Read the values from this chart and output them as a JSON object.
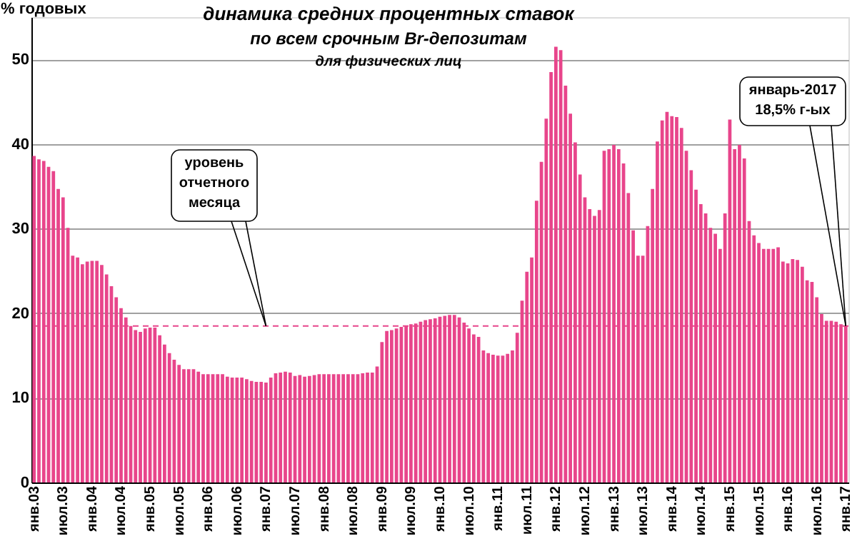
{
  "chart_data": {
    "type": "bar",
    "title": "динамика средних процентных ставок",
    "subtitle": [
      "по всем срочным Br-депозитам",
      "для физических лиц"
    ],
    "ylabel": "% годовых",
    "categories": [
      "янв.03",
      null,
      null,
      null,
      null,
      null,
      "июл.03",
      null,
      null,
      null,
      null,
      null,
      "янв.04",
      null,
      null,
      null,
      null,
      null,
      "июл.04",
      null,
      null,
      null,
      null,
      null,
      "янв.05",
      null,
      null,
      null,
      null,
      null,
      "июл.05",
      null,
      null,
      null,
      null,
      null,
      "янв.06",
      null,
      null,
      null,
      null,
      null,
      "июл.06",
      null,
      null,
      null,
      null,
      null,
      "янв.07",
      null,
      null,
      null,
      null,
      null,
      "июл.07",
      null,
      null,
      null,
      null,
      null,
      "янв.08",
      null,
      null,
      null,
      null,
      null,
      "июл.08",
      null,
      null,
      null,
      null,
      null,
      "янв.09",
      null,
      null,
      null,
      null,
      null,
      "июл.09",
      null,
      null,
      null,
      null,
      null,
      "янв.10",
      null,
      null,
      null,
      null,
      null,
      "июл.10",
      null,
      null,
      null,
      null,
      null,
      "янв.11",
      null,
      null,
      null,
      null,
      null,
      "июл.11",
      null,
      null,
      null,
      null,
      null,
      "янв.12",
      null,
      null,
      null,
      null,
      null,
      "июл.12",
      null,
      null,
      null,
      null,
      null,
      "янв.13",
      null,
      null,
      null,
      null,
      null,
      "июл.13",
      null,
      null,
      null,
      null,
      null,
      "янв.14",
      null,
      null,
      null,
      null,
      null,
      "июл.14",
      null,
      null,
      null,
      null,
      null,
      "янв.15",
      null,
      null,
      null,
      null,
      null,
      "июл.15",
      null,
      null,
      null,
      null,
      null,
      "янв.16",
      null,
      null,
      null,
      null,
      null,
      "июл.16",
      null,
      null,
      null,
      null,
      null,
      "янв.17"
    ],
    "values": [
      38.6,
      38.2,
      38.0,
      37.3,
      36.8,
      34.7,
      33.7,
      30.1,
      26.8,
      26.6,
      25.8,
      26.1,
      26.2,
      26.2,
      25.7,
      24.6,
      23.2,
      21.9,
      20.6,
      19.5,
      18.5,
      18.0,
      17.8,
      18.2,
      18.3,
      18.3,
      17.4,
      16.3,
      15.3,
      14.5,
      13.9,
      13.4,
      13.4,
      13.4,
      13.1,
      12.8,
      12.8,
      12.8,
      12.8,
      12.8,
      12.5,
      12.4,
      12.4,
      12.4,
      12.2,
      12.0,
      11.9,
      11.9,
      11.8,
      12.4,
      12.9,
      13.0,
      13.1,
      13.0,
      12.6,
      12.7,
      12.5,
      12.6,
      12.7,
      12.8,
      12.8,
      12.8,
      12.8,
      12.8,
      12.8,
      12.8,
      12.8,
      12.8,
      12.9,
      13.0,
      13.0,
      13.7,
      16.6,
      17.9,
      18.0,
      18.2,
      18.4,
      18.5,
      18.7,
      18.8,
      19.0,
      19.2,
      19.3,
      19.4,
      19.6,
      19.7,
      19.8,
      19.8,
      19.5,
      18.9,
      18.2,
      17.5,
      17.2,
      15.6,
      15.3,
      15.1,
      15.0,
      15.0,
      15.2,
      15.6,
      17.7,
      21.5,
      24.9,
      26.6,
      33.3,
      37.9,
      43.0,
      48.5,
      51.5,
      51.1,
      46.9,
      43.6,
      40.2,
      36.4,
      33.7,
      32.3,
      31.5,
      32.2,
      39.2,
      39.4,
      39.9,
      39.4,
      37.7,
      34.2,
      29.8,
      26.8,
      26.8,
      30.3,
      34.7,
      40.3,
      42.8,
      43.8,
      43.3,
      43.2,
      41.9,
      39.2,
      36.9,
      34.6,
      32.9,
      31.8,
      30.1,
      29.4,
      27.6,
      31.8,
      42.9,
      39.4,
      39.9,
      38.3,
      30.9,
      29.2,
      28.3,
      27.6,
      27.6,
      27.6,
      27.8,
      26.1,
      25.9,
      26.4,
      26.3,
      25.5,
      23.9,
      23.7,
      21.9,
      19.9,
      19.1,
      19.1,
      19.0,
      18.7,
      18.5
    ],
    "color": "#e8458b",
    "ylim": [
      0,
      55
    ],
    "yticks": [
      0,
      10,
      20,
      30,
      40,
      50
    ],
    "grid": "y",
    "ref_lines": [
      {
        "axis": "y",
        "value": 18.5,
        "color": "#e8458b",
        "line_style": "dashed"
      }
    ],
    "annotations": [
      {
        "text": "уровень\nотчетного\nмесяца",
        "x": "янв.07",
        "y": 18.5
      },
      {
        "text": "январь-2017\n18,5% г-ых",
        "x": "янв.17",
        "y": 18.5
      }
    ]
  }
}
